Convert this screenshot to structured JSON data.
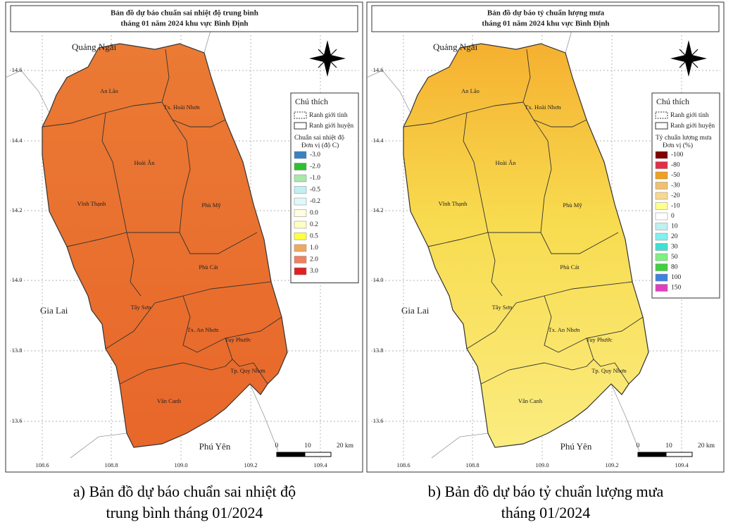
{
  "maps": [
    {
      "title": [
        "Bản đồ dự báo chuẩn sai nhiệt độ trung bình",
        "tháng 01 năm 2024 khu vực Bình Định"
      ],
      "places": [
        "Quảng Ngãi",
        "Gia Lai",
        "Phú Yên"
      ],
      "districts": [
        "An Lão",
        "Tx. Hoài Nhơn",
        "Hoài Ân",
        "Vĩnh Thạnh",
        "Phù Mỹ",
        "Phù Cát",
        "Tây Sơn",
        "Tx. An Nhơn",
        "Tuy Phước",
        "Tp. Quy Nhơn",
        "Vân Canh"
      ],
      "lat_labels": [
        "14.6",
        "14.4",
        "14.2",
        "14.0",
        "13.8",
        "13.6"
      ],
      "lon_labels": [
        "108.6",
        "108.8",
        "109.0",
        "109.2",
        "109.4"
      ],
      "scale": [
        "0",
        "10",
        "20 km"
      ],
      "legend": {
        "title": "Chú thích",
        "boundaries": [
          "Ranh giới tỉnh",
          "Ranh giới huyện"
        ],
        "variable": "Chuẩn sai nhiệt độ",
        "unit": "Đơn vị (độ C)",
        "classes": [
          {
            "label": "-3.0",
            "color": "#3a80c0"
          },
          {
            "label": "-2.0",
            "color": "#2fbf2f"
          },
          {
            "label": "-1.0",
            "color": "#a8e8a8"
          },
          {
            "label": "-0.5",
            "color": "#c0f0f0"
          },
          {
            "label": "-0.2",
            "color": "#e0f8f8"
          },
          {
            "label": "0.0",
            "color": "#fffde0"
          },
          {
            "label": "0.2",
            "color": "#ffffc0"
          },
          {
            "label": "0.5",
            "color": "#ffff40"
          },
          {
            "label": "1.0",
            "color": "#f0a860"
          },
          {
            "label": "2.0",
            "color": "#f08060"
          },
          {
            "label": "3.0",
            "color": "#e02020"
          }
        ]
      },
      "caption": [
        "a) Bản đồ dự báo chuẩn sai nhiệt độ",
        "trung bình tháng 01/2024"
      ]
    },
    {
      "title": [
        "Bản đồ dự báo tỷ chuẩn lượng mưa",
        "tháng 01 năm 2024 khu vực Bình Định"
      ],
      "places": [
        "Quảng Ngãi",
        "Gia Lai",
        "Phú Yên"
      ],
      "districts": [
        "An Lão",
        "Tx. Hoài Nhơn",
        "Hoài Ân",
        "Vĩnh Thạnh",
        "Phù Mỹ",
        "Phù Cát",
        "Tây Sơn",
        "Tx. An Nhơn",
        "Tuy Phước",
        "Tp. Quy Nhơn",
        "Vân Canh"
      ],
      "lat_labels": [
        "14.6",
        "14.4",
        "14.2",
        "14.0",
        "13.8",
        "13.6"
      ],
      "lon_labels": [
        "108.6",
        "108.8",
        "109.0",
        "109.2",
        "109.4"
      ],
      "scale": [
        "0",
        "10",
        "20 km"
      ],
      "legend": {
        "title": "Chú thích",
        "boundaries": [
          "Ranh giới tỉnh",
          "Ranh giới huyện"
        ],
        "variable": "Tỷ chuẩn lượng mưa",
        "unit": "Đơn vị (%)",
        "classes": [
          {
            "label": "-100",
            "color": "#800000"
          },
          {
            "label": "-80",
            "color": "#e0304a"
          },
          {
            "label": "-50",
            "color": "#f0a020"
          },
          {
            "label": "-30",
            "color": "#f0c070"
          },
          {
            "label": "-20",
            "color": "#f8d890"
          },
          {
            "label": "-10",
            "color": "#ffff90"
          },
          {
            "label": "0",
            "color": "#ffffff"
          },
          {
            "label": "10",
            "color": "#c0f0f0"
          },
          {
            "label": "20",
            "color": "#80f0f0"
          },
          {
            "label": "30",
            "color": "#40e0d0"
          },
          {
            "label": "50",
            "color": "#80f080"
          },
          {
            "label": "80",
            "color": "#40d040"
          },
          {
            "label": "100",
            "color": "#4080e0"
          },
          {
            "label": "150",
            "color": "#e040c0"
          }
        ]
      },
      "caption": [
        "b) Bản đồ dự báo tỷ chuẩn lượng mưa",
        "tháng 01/2024"
      ]
    }
  ]
}
